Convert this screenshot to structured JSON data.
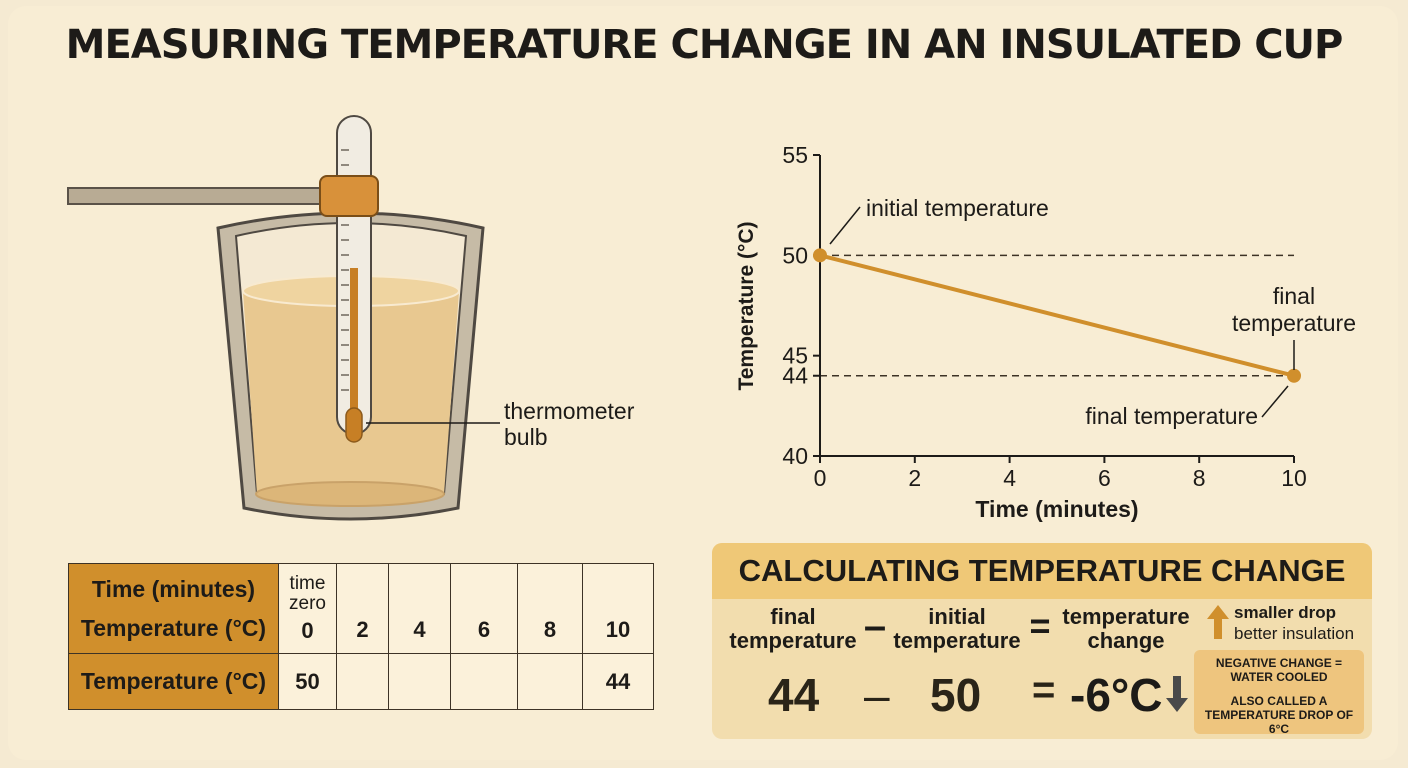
{
  "title": "MEASURING TEMPERATURE CHANGE IN AN INSULATED CUP",
  "diagram": {
    "bulb_label_line1": "thermometer",
    "bulb_label_line2": "bulb"
  },
  "chart_data": {
    "type": "line",
    "xlabel": "Time (minutes)",
    "ylabel": "Temperature (°C)",
    "xlim": [
      0,
      10
    ],
    "ylim": [
      40,
      55
    ],
    "x_ticks": [
      "0",
      "2",
      "4",
      "6",
      "8",
      "10"
    ],
    "y_ticks": [
      "40",
      "44",
      "45",
      "50",
      "55"
    ],
    "series": [
      {
        "x": [
          0,
          10
        ],
        "y": [
          50,
          44
        ]
      }
    ],
    "annotations": {
      "initial": "initial temperature",
      "final_top_line1": "final",
      "final_top_line2": "temperature",
      "final_bottom": "final temperature"
    },
    "line_color": "#d08f2c"
  },
  "table": {
    "header_time": "Time (minutes)",
    "header_temp": "Temperature (°C)",
    "time_zero_line1": "time",
    "time_zero_line2": "zero",
    "times": [
      "0",
      "2",
      "4",
      "6",
      "8",
      "10"
    ],
    "row_label": "Temperature (°C)",
    "temps": [
      "50",
      "",
      "",
      "",
      "",
      "44"
    ]
  },
  "calc": {
    "heading": "CALCULATING TEMPERATURE CHANGE",
    "final_line1": "final",
    "final_line2": "temperature",
    "minus": "–",
    "initial_line1": "initial",
    "initial_line2": "temperature",
    "equals": "=",
    "change_line1": "temperature",
    "change_line2": "change",
    "final_value": "44",
    "initial_value": "50",
    "result": "-6°C",
    "tip_line1": "smaller drop",
    "tip_line2": "better insulation",
    "note_line1": "NEGATIVE CHANGE =",
    "note_line2": "WATER COOLED",
    "note_line3": "ALSO CALLED A",
    "note_line4": "TEMPERATURE DROP OF 6°C"
  }
}
